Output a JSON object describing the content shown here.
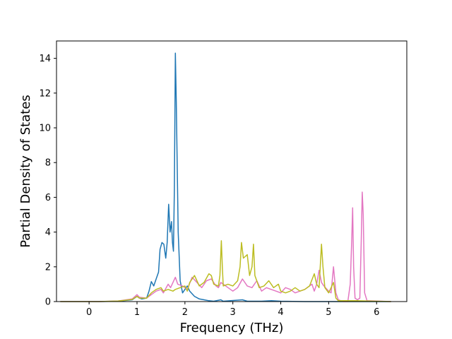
{
  "chart_data": {
    "type": "line",
    "title": "",
    "xlabel": "Frequency (THz)",
    "ylabel": "Partial Density of States",
    "xlim": [
      -0.68,
      6.63
    ],
    "ylim": [
      0,
      15
    ],
    "xticks": [
      0,
      1,
      2,
      3,
      4,
      5,
      6
    ],
    "yticks": [
      0,
      2,
      4,
      6,
      8,
      10,
      12,
      14
    ],
    "grid": false,
    "legend": "none",
    "series": [
      {
        "color": "#1f77b4",
        "points": [
          [
            -0.6,
            0
          ],
          [
            0.2,
            0
          ],
          [
            0.6,
            0.02
          ],
          [
            0.9,
            0.1
          ],
          [
            1.0,
            0.3
          ],
          [
            1.05,
            0.2
          ],
          [
            1.1,
            0.15
          ],
          [
            1.2,
            0.2
          ],
          [
            1.25,
            0.6
          ],
          [
            1.3,
            1.15
          ],
          [
            1.35,
            0.9
          ],
          [
            1.4,
            1.3
          ],
          [
            1.45,
            1.7
          ],
          [
            1.48,
            3.0
          ],
          [
            1.52,
            3.4
          ],
          [
            1.56,
            3.3
          ],
          [
            1.6,
            2.5
          ],
          [
            1.63,
            3.4
          ],
          [
            1.66,
            5.6
          ],
          [
            1.69,
            4.0
          ],
          [
            1.72,
            4.6
          ],
          [
            1.74,
            3.4
          ],
          [
            1.76,
            2.9
          ],
          [
            1.78,
            6.5
          ],
          [
            1.8,
            14.3
          ],
          [
            1.82,
            11.5
          ],
          [
            1.86,
            4.0
          ],
          [
            1.9,
            1.2
          ],
          [
            1.95,
            0.5
          ],
          [
            2.0,
            0.7
          ],
          [
            2.05,
            0.9
          ],
          [
            2.1,
            0.6
          ],
          [
            2.2,
            0.3
          ],
          [
            2.3,
            0.15
          ],
          [
            2.4,
            0.1
          ],
          [
            2.5,
            0.05
          ],
          [
            2.6,
            0.02
          ],
          [
            2.75,
            0.1
          ],
          [
            2.8,
            0.02
          ],
          [
            2.9,
            0.04
          ],
          [
            3.2,
            0.1
          ],
          [
            3.3,
            0.02
          ],
          [
            3.6,
            0.02
          ],
          [
            3.8,
            0.05
          ],
          [
            4.0,
            0.02
          ],
          [
            4.5,
            0
          ],
          [
            6.3,
            0
          ]
        ]
      },
      {
        "color": "#e377c2",
        "points": [
          [
            -0.6,
            0
          ],
          [
            0.2,
            0
          ],
          [
            0.6,
            0.03
          ],
          [
            0.9,
            0.15
          ],
          [
            1.0,
            0.4
          ],
          [
            1.05,
            0.25
          ],
          [
            1.2,
            0.2
          ],
          [
            1.3,
            0.4
          ],
          [
            1.4,
            0.6
          ],
          [
            1.5,
            0.7
          ],
          [
            1.55,
            0.5
          ],
          [
            1.65,
            1.0
          ],
          [
            1.7,
            0.8
          ],
          [
            1.75,
            1.1
          ],
          [
            1.8,
            1.4
          ],
          [
            1.85,
            1.0
          ],
          [
            1.95,
            0.9
          ],
          [
            2.05,
            0.7
          ],
          [
            2.15,
            1.4
          ],
          [
            2.25,
            1.1
          ],
          [
            2.35,
            0.8
          ],
          [
            2.45,
            1.2
          ],
          [
            2.55,
            1.3
          ],
          [
            2.65,
            0.9
          ],
          [
            2.7,
            0.8
          ],
          [
            2.75,
            1.1
          ],
          [
            2.8,
            1.0
          ],
          [
            2.9,
            0.8
          ],
          [
            3.0,
            0.6
          ],
          [
            3.1,
            0.8
          ],
          [
            3.2,
            1.3
          ],
          [
            3.3,
            0.9
          ],
          [
            3.4,
            0.8
          ],
          [
            3.5,
            1.2
          ],
          [
            3.6,
            0.6
          ],
          [
            3.7,
            0.8
          ],
          [
            3.8,
            0.7
          ],
          [
            3.9,
            0.6
          ],
          [
            4.0,
            0.5
          ],
          [
            4.1,
            0.8
          ],
          [
            4.2,
            0.7
          ],
          [
            4.3,
            0.5
          ],
          [
            4.4,
            0.6
          ],
          [
            4.5,
            0.7
          ],
          [
            4.6,
            0.9
          ],
          [
            4.65,
            1.0
          ],
          [
            4.7,
            0.6
          ],
          [
            4.75,
            1.0
          ],
          [
            4.8,
            1.8
          ],
          [
            4.85,
            1.1
          ],
          [
            4.9,
            0.9
          ],
          [
            5.0,
            0.6
          ],
          [
            5.05,
            0.5
          ],
          [
            5.1,
            2.0
          ],
          [
            5.15,
            0.5
          ],
          [
            5.2,
            0.1
          ],
          [
            5.3,
            0
          ],
          [
            5.4,
            0
          ],
          [
            5.45,
            1.0
          ],
          [
            5.48,
            3.5
          ],
          [
            5.5,
            5.4
          ],
          [
            5.52,
            2.0
          ],
          [
            5.55,
            0.2
          ],
          [
            5.6,
            0.1
          ],
          [
            5.65,
            0.2
          ],
          [
            5.68,
            3.5
          ],
          [
            5.7,
            6.3
          ],
          [
            5.72,
            5.0
          ],
          [
            5.75,
            0.5
          ],
          [
            5.8,
            0.05
          ],
          [
            6.3,
            0
          ]
        ]
      },
      {
        "color": "#bcbd22",
        "points": [
          [
            -0.6,
            0
          ],
          [
            0.2,
            0
          ],
          [
            0.6,
            0.03
          ],
          [
            0.9,
            0.12
          ],
          [
            1.0,
            0.3
          ],
          [
            1.05,
            0.2
          ],
          [
            1.2,
            0.2
          ],
          [
            1.3,
            0.5
          ],
          [
            1.4,
            0.7
          ],
          [
            1.5,
            0.8
          ],
          [
            1.55,
            0.6
          ],
          [
            1.65,
            0.7
          ],
          [
            1.75,
            0.6
          ],
          [
            1.8,
            0.7
          ],
          [
            1.9,
            0.8
          ],
          [
            2.0,
            0.9
          ],
          [
            2.05,
            0.6
          ],
          [
            2.1,
            1.1
          ],
          [
            2.2,
            1.5
          ],
          [
            2.25,
            1.2
          ],
          [
            2.3,
            0.9
          ],
          [
            2.4,
            1.1
          ],
          [
            2.5,
            1.6
          ],
          [
            2.55,
            1.5
          ],
          [
            2.6,
            1.0
          ],
          [
            2.7,
            0.9
          ],
          [
            2.73,
            1.5
          ],
          [
            2.76,
            3.5
          ],
          [
            2.78,
            2.0
          ],
          [
            2.8,
            0.9
          ],
          [
            2.9,
            1.0
          ],
          [
            3.0,
            0.9
          ],
          [
            3.1,
            1.2
          ],
          [
            3.15,
            2.0
          ],
          [
            3.18,
            3.4
          ],
          [
            3.22,
            2.5
          ],
          [
            3.3,
            2.7
          ],
          [
            3.35,
            1.5
          ],
          [
            3.4,
            2.0
          ],
          [
            3.43,
            3.3
          ],
          [
            3.46,
            1.5
          ],
          [
            3.55,
            0.8
          ],
          [
            3.65,
            0.9
          ],
          [
            3.75,
            1.2
          ],
          [
            3.85,
            0.8
          ],
          [
            3.95,
            1.0
          ],
          [
            4.0,
            0.6
          ],
          [
            4.1,
            0.5
          ],
          [
            4.2,
            0.6
          ],
          [
            4.3,
            0.8
          ],
          [
            4.4,
            0.6
          ],
          [
            4.5,
            0.7
          ],
          [
            4.6,
            0.9
          ],
          [
            4.7,
            1.6
          ],
          [
            4.75,
            1.0
          ],
          [
            4.8,
            0.8
          ],
          [
            4.85,
            3.3
          ],
          [
            4.88,
            2.0
          ],
          [
            4.92,
            0.8
          ],
          [
            5.0,
            0.5
          ],
          [
            5.1,
            1.1
          ],
          [
            5.15,
            0.2
          ],
          [
            5.2,
            0.05
          ],
          [
            5.5,
            0.05
          ],
          [
            5.6,
            0.05
          ],
          [
            6.3,
            0
          ]
        ]
      }
    ]
  }
}
